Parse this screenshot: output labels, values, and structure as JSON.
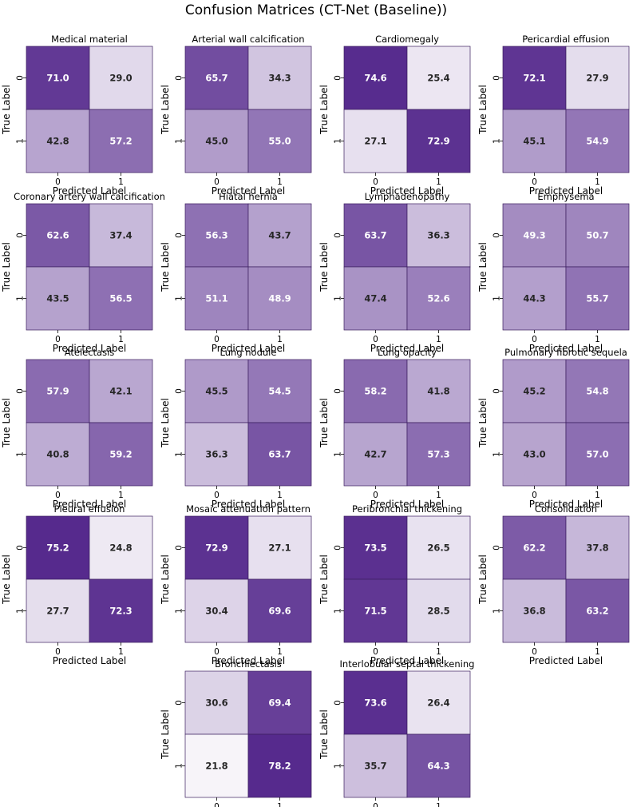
{
  "figure_title": "Confusion Matrices (CT-Net (Baseline))",
  "chart_data": {
    "type": "heatmap",
    "colormap": "Purples",
    "color_range_percent": [
      20,
      75
    ],
    "xlabel": "Predicted Label",
    "ylabel": "True Label",
    "x_ticks": [
      "0",
      "1"
    ],
    "y_ticks": [
      "0",
      "1"
    ],
    "colors": {
      "dark": "#562a8d",
      "light": "#fcfbfd",
      "text_dark": "#262626",
      "text_light": "#ffffff",
      "edge": "#3a1d5e"
    },
    "panels": [
      {
        "title": "Medical material",
        "values": [
          [
            "71.0",
            "29.0"
          ],
          [
            "42.8",
            "57.2"
          ]
        ]
      },
      {
        "title": "Arterial wall calcification",
        "values": [
          [
            "65.7",
            "34.3"
          ],
          [
            "45.0",
            "55.0"
          ]
        ]
      },
      {
        "title": "Cardiomegaly",
        "values": [
          [
            "74.6",
            "25.4"
          ],
          [
            "27.1",
            "72.9"
          ]
        ]
      },
      {
        "title": "Pericardial effusion",
        "values": [
          [
            "72.1",
            "27.9"
          ],
          [
            "45.1",
            "54.9"
          ]
        ]
      },
      {
        "title": "Coronary artery wall calcification",
        "values": [
          [
            "62.6",
            "37.4"
          ],
          [
            "43.5",
            "56.5"
          ]
        ]
      },
      {
        "title": "Hiatal hernia",
        "values": [
          [
            "56.3",
            "43.7"
          ],
          [
            "51.1",
            "48.9"
          ]
        ]
      },
      {
        "title": "Lymphadenopathy",
        "values": [
          [
            "63.7",
            "36.3"
          ],
          [
            "47.4",
            "52.6"
          ]
        ]
      },
      {
        "title": "Emphysema",
        "values": [
          [
            "49.3",
            "50.7"
          ],
          [
            "44.3",
            "55.7"
          ]
        ]
      },
      {
        "title": "Atelectasis",
        "values": [
          [
            "57.9",
            "42.1"
          ],
          [
            "40.8",
            "59.2"
          ]
        ]
      },
      {
        "title": "Lung nodule",
        "values": [
          [
            "45.5",
            "54.5"
          ],
          [
            "36.3",
            "63.7"
          ]
        ]
      },
      {
        "title": "Lung opacity",
        "values": [
          [
            "58.2",
            "41.8"
          ],
          [
            "42.7",
            "57.3"
          ]
        ]
      },
      {
        "title": "Pulmonary fibrotic sequela",
        "values": [
          [
            "45.2",
            "54.8"
          ],
          [
            "43.0",
            "57.0"
          ]
        ]
      },
      {
        "title": "Pleural effusion",
        "values": [
          [
            "75.2",
            "24.8"
          ],
          [
            "27.7",
            "72.3"
          ]
        ]
      },
      {
        "title": "Mosaic attenuation pattern",
        "values": [
          [
            "72.9",
            "27.1"
          ],
          [
            "30.4",
            "69.6"
          ]
        ]
      },
      {
        "title": "Peribronchial thickening",
        "values": [
          [
            "73.5",
            "26.5"
          ],
          [
            "71.5",
            "28.5"
          ]
        ]
      },
      {
        "title": "Consolidation",
        "values": [
          [
            "62.2",
            "37.8"
          ],
          [
            "36.8",
            "63.2"
          ]
        ]
      },
      {
        "title": "Bronchiectasis",
        "values": [
          [
            "30.6",
            "69.4"
          ],
          [
            "21.8",
            "78.2"
          ]
        ]
      },
      {
        "title": "Interlobular septal thickening",
        "values": [
          [
            "73.6",
            "26.4"
          ],
          [
            "35.7",
            "64.3"
          ]
        ]
      }
    ]
  }
}
